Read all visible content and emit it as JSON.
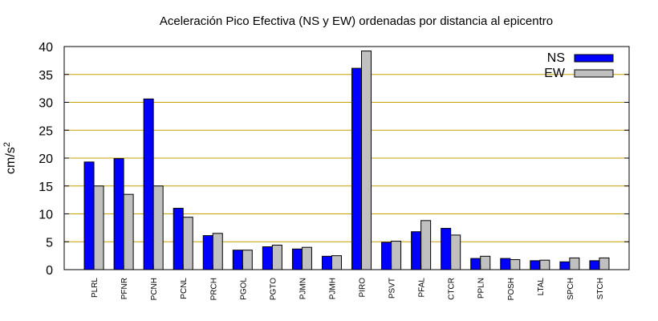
{
  "chart_data": {
    "type": "bar",
    "title": "Aceleración Pico Efectiva (NS y EW) ordenadas por distancia al epicentro",
    "xlabel": "",
    "ylabel": "cm/s",
    "ylabel_sup": "2",
    "ylim": [
      0,
      40
    ],
    "yticks": [
      0,
      5,
      10,
      15,
      20,
      25,
      30,
      35,
      40
    ],
    "grid": true,
    "legend_position": "top-right",
    "categories": [
      "PLRL",
      "PFNR",
      "PCNH",
      "PCNL",
      "PRCH",
      "PGOL",
      "PGTO",
      "PJMN",
      "PJMH",
      "PIRO",
      "PSVT",
      "PFAL",
      "CTCR",
      "PPLN",
      "POSH",
      "LTAL",
      "SPCH",
      "STCH"
    ],
    "series": [
      {
        "name": "NS",
        "color": "#0000ff",
        "values": [
          19.3,
          19.9,
          30.6,
          11.0,
          6.1,
          3.5,
          4.1,
          3.7,
          2.4,
          36.1,
          4.9,
          6.8,
          7.4,
          2.0,
          2.0,
          1.6,
          1.4,
          1.6
        ]
      },
      {
        "name": "EW",
        "color": "#c0c0c0",
        "values": [
          15.0,
          13.5,
          15.0,
          9.4,
          6.5,
          3.5,
          4.4,
          4.0,
          2.5,
          39.2,
          5.1,
          8.8,
          6.2,
          2.4,
          1.8,
          1.7,
          2.1,
          2.1
        ]
      }
    ]
  }
}
